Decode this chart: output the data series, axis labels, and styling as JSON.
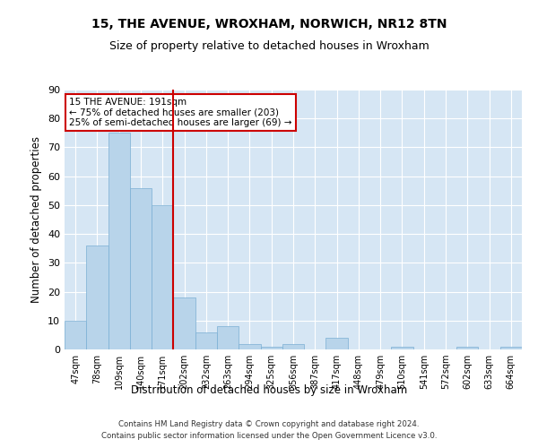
{
  "title": "15, THE AVENUE, WROXHAM, NORWICH, NR12 8TN",
  "subtitle": "Size of property relative to detached houses in Wroxham",
  "xlabel": "Distribution of detached houses by size in Wroxham",
  "ylabel": "Number of detached properties",
  "footnote1": "Contains HM Land Registry data © Crown copyright and database right 2024.",
  "footnote2": "Contains public sector information licensed under the Open Government Licence v3.0.",
  "categories": [
    "47sqm",
    "78sqm",
    "109sqm",
    "140sqm",
    "171sqm",
    "202sqm",
    "232sqm",
    "263sqm",
    "294sqm",
    "325sqm",
    "356sqm",
    "387sqm",
    "417sqm",
    "448sqm",
    "479sqm",
    "510sqm",
    "541sqm",
    "572sqm",
    "602sqm",
    "633sqm",
    "664sqm"
  ],
  "values": [
    10,
    36,
    75,
    56,
    50,
    18,
    6,
    8,
    2,
    1,
    2,
    0,
    4,
    0,
    0,
    1,
    0,
    0,
    1,
    0,
    1
  ],
  "bar_color": "#b8d4ea",
  "bar_edge_color": "#7aafd4",
  "vline_x": 4.5,
  "vline_color": "#cc0000",
  "annotation_text": "15 THE AVENUE: 191sqm\n← 75% of detached houses are smaller (203)\n25% of semi-detached houses are larger (69) →",
  "annotation_box_color": "#cc0000",
  "annotation_bg": "#ffffff",
  "ylim": [
    0,
    90
  ],
  "yticks": [
    0,
    10,
    20,
    30,
    40,
    50,
    60,
    70,
    80,
    90
  ],
  "bg_color": "#d6e6f4",
  "title_fontsize": 10,
  "subtitle_fontsize": 9,
  "axis_label_fontsize": 8.5
}
